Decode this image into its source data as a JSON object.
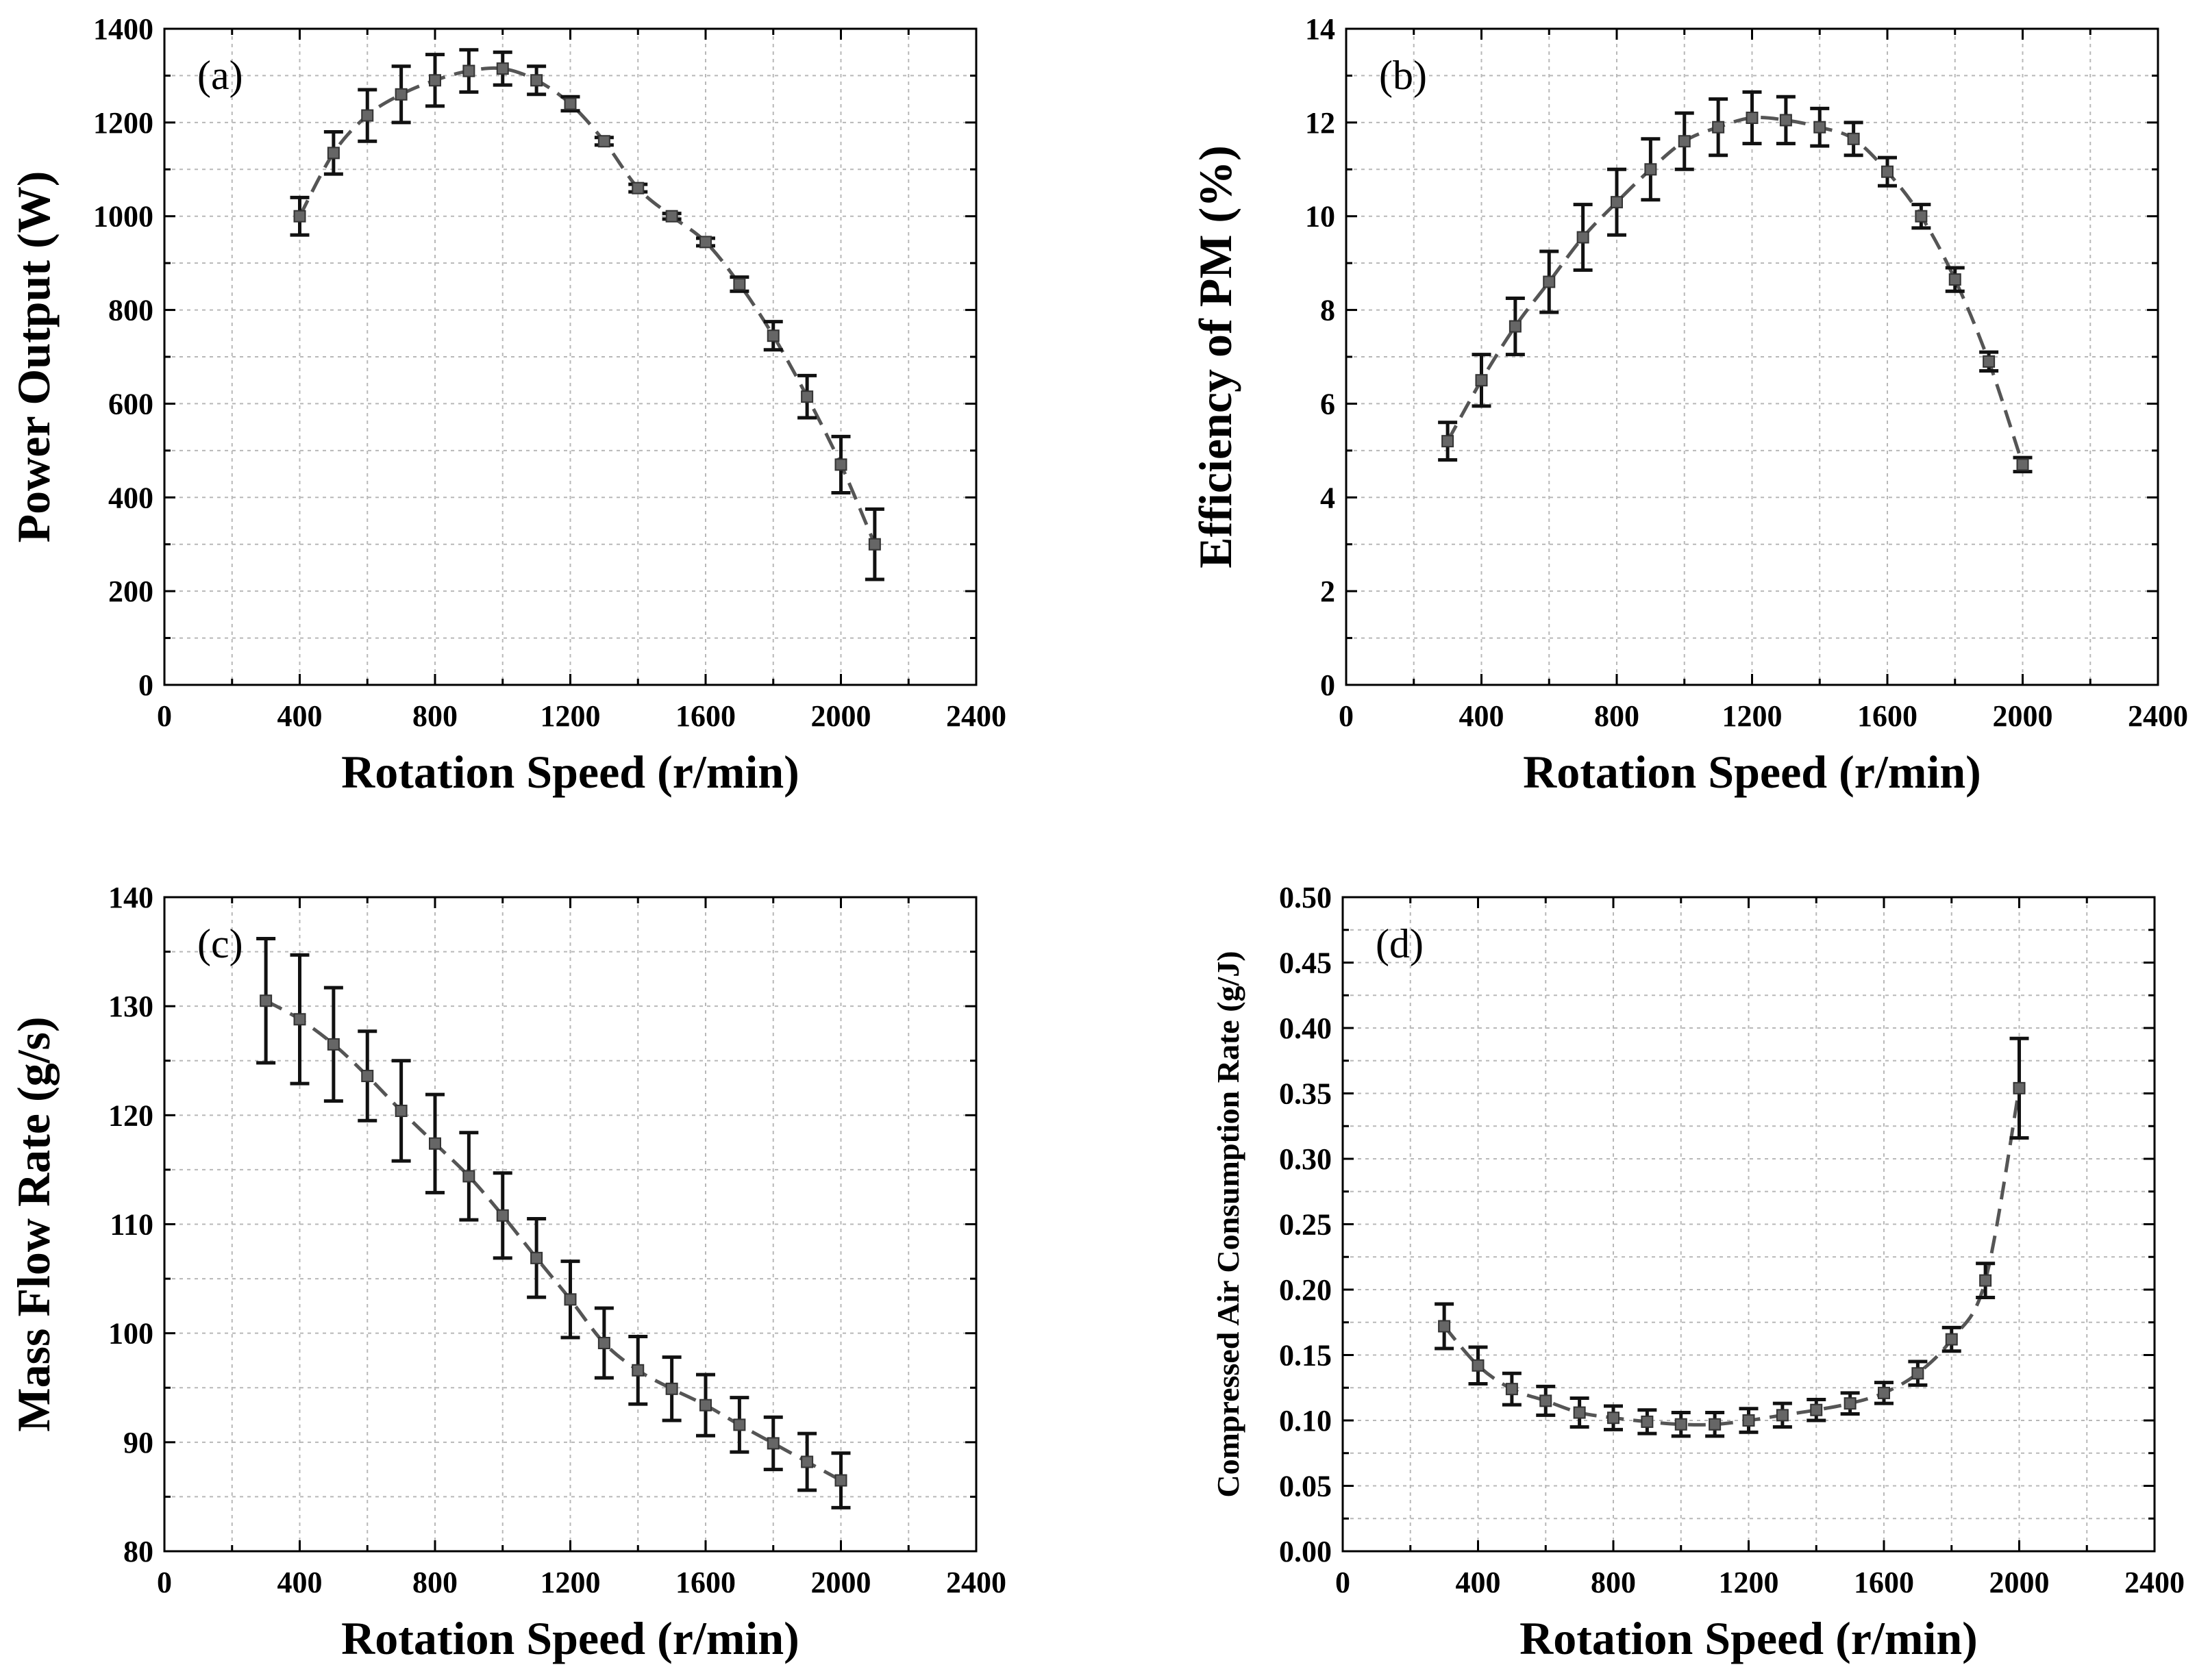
{
  "chart_data": [
    {
      "type": "line",
      "panel_label": "(a)",
      "xlabel": "Rotation Speed (r/min)",
      "ylabel": "Power Output (W)",
      "xlim": [
        0,
        2400
      ],
      "ylim": [
        0,
        1400
      ],
      "xticks": [
        0,
        400,
        800,
        1200,
        1600,
        2000,
        2400
      ],
      "yticks": [
        0,
        200,
        400,
        600,
        800,
        1000,
        1200,
        1400
      ],
      "grid": true,
      "series": [
        {
          "x": [
            400,
            500,
            600,
            700,
            800,
            900,
            1000,
            1100,
            1200,
            1300,
            1400,
            1500,
            1600,
            1700,
            1800,
            1900,
            2000,
            2100
          ],
          "values": [
            1000,
            1135,
            1215,
            1260,
            1290,
            1310,
            1315,
            1290,
            1240,
            1160,
            1060,
            1000,
            945,
            855,
            745,
            615,
            470,
            300
          ],
          "errors": [
            40,
            45,
            55,
            60,
            55,
            45,
            35,
            30,
            15,
            8,
            8,
            6,
            8,
            15,
            30,
            45,
            60,
            75
          ],
          "marker": "square",
          "line": "dashed"
        }
      ]
    },
    {
      "type": "line",
      "panel_label": "(b)",
      "xlabel": "Rotation Speed (r/min)",
      "ylabel": "Efficiency of PM (%)",
      "xlim": [
        0,
        2400
      ],
      "ylim": [
        0,
        14
      ],
      "xticks": [
        0,
        400,
        800,
        1200,
        1600,
        2000,
        2400
      ],
      "yticks": [
        0,
        2,
        4,
        6,
        8,
        10,
        12,
        14
      ],
      "grid": true,
      "series": [
        {
          "x": [
            300,
            400,
            500,
            600,
            700,
            800,
            900,
            1000,
            1100,
            1200,
            1300,
            1400,
            1500,
            1600,
            1700,
            1800,
            1900,
            2000
          ],
          "values": [
            5.2,
            6.5,
            7.65,
            8.6,
            9.55,
            10.3,
            11.0,
            11.6,
            11.9,
            12.1,
            12.05,
            11.9,
            11.65,
            10.95,
            10.0,
            8.65,
            6.9,
            4.7
          ],
          "errors": [
            0.4,
            0.55,
            0.6,
            0.65,
            0.7,
            0.7,
            0.65,
            0.6,
            0.6,
            0.55,
            0.5,
            0.4,
            0.35,
            0.3,
            0.25,
            0.25,
            0.2,
            0.15
          ],
          "marker": "square",
          "line": "dashed"
        }
      ]
    },
    {
      "type": "line",
      "panel_label": "(c)",
      "xlabel": "Rotation Speed (r/min)",
      "ylabel": "Mass Flow Rate (g/s)",
      "xlim": [
        0,
        2400
      ],
      "ylim": [
        80,
        140
      ],
      "xticks": [
        0,
        400,
        800,
        1200,
        1600,
        2000,
        2400
      ],
      "yticks": [
        80,
        90,
        100,
        110,
        120,
        130,
        140
      ],
      "grid": true,
      "series": [
        {
          "x": [
            300,
            400,
            500,
            600,
            700,
            800,
            900,
            1000,
            1100,
            1200,
            1300,
            1400,
            1500,
            1600,
            1700,
            1800,
            1900,
            2000
          ],
          "values": [
            130.5,
            128.8,
            126.5,
            123.6,
            120.4,
            117.4,
            114.4,
            110.8,
            106.9,
            103.1,
            99.1,
            96.6,
            94.9,
            93.4,
            91.6,
            89.9,
            88.2,
            86.5
          ],
          "errors": [
            5.7,
            5.9,
            5.2,
            4.1,
            4.6,
            4.5,
            4.0,
            3.9,
            3.6,
            3.5,
            3.2,
            3.1,
            2.9,
            2.8,
            2.5,
            2.4,
            2.6,
            2.5
          ],
          "marker": "square",
          "line": "dashed"
        }
      ]
    },
    {
      "type": "line",
      "panel_label": "(d)",
      "xlabel": "Rotation Speed (r/min)",
      "ylabel": "Compressed Air Consumption Rate (g/J)",
      "xlim": [
        0,
        2400
      ],
      "ylim": [
        0.0,
        0.5
      ],
      "xticks": [
        0,
        400,
        800,
        1200,
        1600,
        2000,
        2400
      ],
      "yticks": [
        0.0,
        0.05,
        0.1,
        0.15,
        0.2,
        0.25,
        0.3,
        0.35,
        0.4,
        0.45,
        0.5
      ],
      "ytick_labels": [
        "0.00",
        "0.05",
        "0.10",
        "0.15",
        "0.20",
        "0.25",
        "0.30",
        "0.35",
        "0.40",
        "0.45",
        "0.50"
      ],
      "grid": true,
      "series": [
        {
          "x": [
            300,
            400,
            500,
            600,
            700,
            800,
            900,
            1000,
            1100,
            1200,
            1300,
            1400,
            1500,
            1600,
            1700,
            1800,
            1900,
            2000
          ],
          "values": [
            0.172,
            0.142,
            0.124,
            0.115,
            0.106,
            0.102,
            0.099,
            0.097,
            0.097,
            0.1,
            0.104,
            0.108,
            0.113,
            0.121,
            0.136,
            0.162,
            0.207,
            0.354
          ],
          "errors": [
            0.017,
            0.014,
            0.012,
            0.011,
            0.011,
            0.009,
            0.009,
            0.009,
            0.009,
            0.009,
            0.009,
            0.008,
            0.008,
            0.008,
            0.009,
            0.009,
            0.013,
            0.038
          ],
          "marker": "square",
          "line": "dashed"
        }
      ]
    }
  ],
  "colors": {
    "axis": "#000000",
    "grid": "#b8b8b8",
    "fit_line": "#555555",
    "marker": "#666666",
    "error_bar": "#111111"
  }
}
